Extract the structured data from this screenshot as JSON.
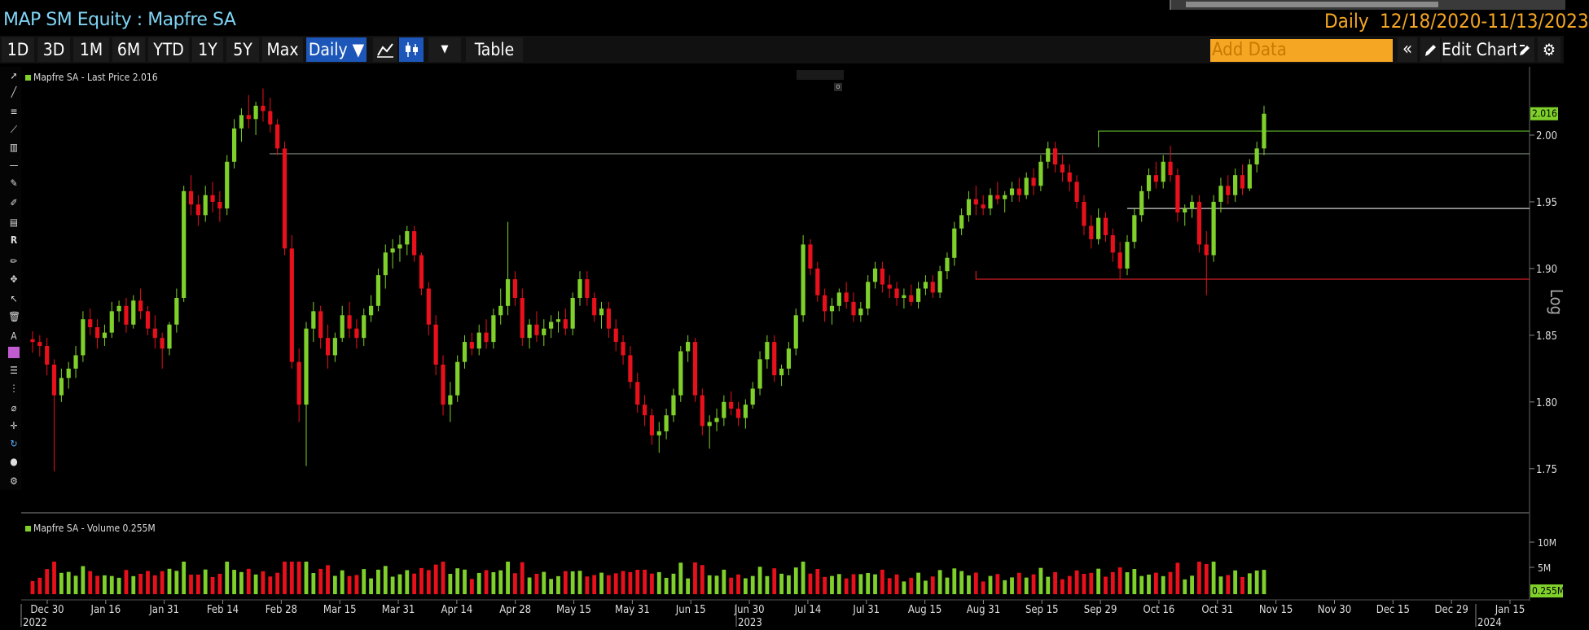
{
  "header": {
    "title": "MAP SM Equity : Mapfre SA",
    "period": "Daily",
    "date_range": "12/18/2020-11/13/2023"
  },
  "toolbar": {
    "ranges": [
      "1D",
      "3D",
      "1M",
      "6M",
      "YTD",
      "1Y",
      "5Y",
      "Max"
    ],
    "frequency": "Daily ▼",
    "table_label": "Table",
    "add_data_placeholder": "Add Data",
    "edit_chart_label": "Edit Chart"
  },
  "legend": {
    "price": "Mapfre SA - Last Price 2.016",
    "volume": "Mapfre SA - Volume 0.255M"
  },
  "price_axis": {
    "ticks": [
      "2.00",
      "1.95",
      "1.90",
      "1.85",
      "1.80",
      "1.75"
    ],
    "last_price_tag": "2.016",
    "scale_label": "Log"
  },
  "volume_axis": {
    "ticks": [
      "10M",
      "5M"
    ],
    "last_volume_tag": "0.255M"
  },
  "time_axis": {
    "labels": [
      "Dec 30",
      "Jan 16",
      "Jan 31",
      "Feb 14",
      "Feb 28",
      "Mar 15",
      "Mar 31",
      "Apr 14",
      "Apr 28",
      "May 15",
      "May 31",
      "Jun 15",
      "Jun 30",
      "Jul 14",
      "Jul 31",
      "Aug 15",
      "Aug 31",
      "Sep 15",
      "Sep 29",
      "Oct 16",
      "Oct 31",
      "Nov 15",
      "Nov 30",
      "Dec 15",
      "Dec 29",
      "Jan 15"
    ],
    "years": [
      "2022",
      "2023",
      "2024"
    ]
  },
  "colors": {
    "up": "#7fd02a",
    "down": "#e8101a",
    "accent": "#f5a623",
    "title": "#7fd4f5",
    "active_button": "#1c56b8"
  },
  "chart_data": {
    "type": "candlestick",
    "series": [
      {
        "name": "Mapfre SA - Last Price"
      }
    ],
    "ylim": [
      1.72,
      2.05
    ],
    "last_price": 2.016,
    "reference_lines": [
      1.986,
      2.003,
      1.945,
      1.892
    ],
    "candles": [
      [
        1.847,
        1.853,
        1.837,
        1.845
      ],
      [
        1.845,
        1.85,
        1.834,
        1.842
      ],
      [
        1.842,
        1.848,
        1.82,
        1.828
      ],
      [
        1.828,
        1.832,
        1.748,
        1.805
      ],
      [
        1.805,
        1.825,
        1.8,
        1.818
      ],
      [
        1.818,
        1.83,
        1.81,
        1.825
      ],
      [
        1.825,
        1.842,
        1.818,
        1.835
      ],
      [
        1.835,
        1.868,
        1.83,
        1.862
      ],
      [
        1.862,
        1.87,
        1.85,
        1.856
      ],
      [
        1.856,
        1.862,
        1.84,
        1.848
      ],
      [
        1.848,
        1.858,
        1.842,
        1.852
      ],
      [
        1.852,
        1.875,
        1.848,
        1.868
      ],
      [
        1.868,
        1.876,
        1.86,
        1.872
      ],
      [
        1.872,
        1.878,
        1.852,
        1.858
      ],
      [
        1.858,
        1.88,
        1.855,
        1.876
      ],
      [
        1.876,
        1.885,
        1.862,
        1.868
      ],
      [
        1.868,
        1.872,
        1.85,
        1.855
      ],
      [
        1.855,
        1.865,
        1.84,
        1.848
      ],
      [
        1.848,
        1.852,
        1.825,
        1.84
      ],
      [
        1.84,
        1.86,
        1.835,
        1.858
      ],
      [
        1.858,
        1.885,
        1.852,
        1.878
      ],
      [
        1.878,
        1.962,
        1.875,
        1.958
      ],
      [
        1.958,
        1.97,
        1.94,
        1.948
      ],
      [
        1.948,
        1.955,
        1.932,
        1.94
      ],
      [
        1.94,
        1.962,
        1.935,
        1.955
      ],
      [
        1.955,
        1.965,
        1.942,
        1.95
      ],
      [
        1.95,
        1.958,
        1.935,
        1.945
      ],
      [
        1.945,
        1.985,
        1.94,
        1.98
      ],
      [
        1.98,
        2.012,
        1.975,
        2.005
      ],
      [
        2.005,
        2.02,
        1.995,
        2.015
      ],
      [
        2.015,
        2.03,
        2.005,
        2.012
      ],
      [
        2.012,
        2.025,
        2.0,
        2.022
      ],
      [
        2.022,
        2.035,
        2.01,
        2.018
      ],
      [
        2.018,
        2.028,
        2.002,
        2.008
      ],
      [
        2.008,
        2.012,
        1.985,
        1.99
      ],
      [
        1.99,
        1.995,
        1.91,
        1.915
      ],
      [
        1.915,
        1.925,
        1.825,
        1.83
      ],
      [
        1.83,
        1.84,
        1.785,
        1.798
      ],
      [
        1.798,
        1.86,
        1.752,
        1.855
      ],
      [
        1.855,
        1.875,
        1.845,
        1.868
      ],
      [
        1.868,
        1.872,
        1.84,
        1.848
      ],
      [
        1.848,
        1.858,
        1.825,
        1.835
      ],
      [
        1.835,
        1.852,
        1.83,
        1.848
      ],
      [
        1.848,
        1.872,
        1.845,
        1.865
      ],
      [
        1.865,
        1.875,
        1.848,
        1.855
      ],
      [
        1.855,
        1.862,
        1.84,
        1.848
      ],
      [
        1.848,
        1.87,
        1.842,
        1.865
      ],
      [
        1.865,
        1.88,
        1.86,
        1.872
      ],
      [
        1.872,
        1.9,
        1.868,
        1.895
      ],
      [
        1.895,
        1.918,
        1.885,
        1.912
      ],
      [
        1.912,
        1.922,
        1.9,
        1.915
      ],
      [
        1.915,
        1.925,
        1.905,
        1.918
      ],
      [
        1.918,
        1.932,
        1.91,
        1.928
      ],
      [
        1.928,
        1.932,
        1.905,
        1.91
      ],
      [
        1.91,
        1.912,
        1.88,
        1.885
      ],
      [
        1.885,
        1.89,
        1.85,
        1.858
      ],
      [
        1.858,
        1.865,
        1.82,
        1.828
      ],
      [
        1.828,
        1.835,
        1.79,
        1.798
      ],
      [
        1.798,
        1.815,
        1.785,
        1.805
      ],
      [
        1.805,
        1.835,
        1.8,
        1.83
      ],
      [
        1.83,
        1.85,
        1.825,
        1.845
      ],
      [
        1.845,
        1.852,
        1.835,
        1.84
      ],
      [
        1.84,
        1.858,
        1.835,
        1.852
      ],
      [
        1.852,
        1.862,
        1.84,
        1.845
      ],
      [
        1.845,
        1.87,
        1.84,
        1.865
      ],
      [
        1.865,
        1.885,
        1.858,
        1.872
      ],
      [
        1.872,
        1.935,
        1.865,
        1.892
      ],
      [
        1.892,
        1.898,
        1.872,
        1.878
      ],
      [
        1.878,
        1.885,
        1.842,
        1.848
      ],
      [
        1.848,
        1.862,
        1.84,
        1.858
      ],
      [
        1.858,
        1.868,
        1.845,
        1.85
      ],
      [
        1.85,
        1.862,
        1.842,
        1.855
      ],
      [
        1.855,
        1.865,
        1.848,
        1.86
      ],
      [
        1.86,
        1.868,
        1.852,
        1.862
      ],
      [
        1.862,
        1.87,
        1.85,
        1.855
      ],
      [
        1.855,
        1.882,
        1.85,
        1.878
      ],
      [
        1.878,
        1.898,
        1.872,
        1.892
      ],
      [
        1.892,
        1.898,
        1.872,
        1.878
      ],
      [
        1.878,
        1.882,
        1.86,
        1.865
      ],
      [
        1.865,
        1.875,
        1.855,
        1.87
      ],
      [
        1.87,
        1.875,
        1.848,
        1.855
      ],
      [
        1.855,
        1.862,
        1.838,
        1.845
      ],
      [
        1.845,
        1.85,
        1.828,
        1.835
      ],
      [
        1.835,
        1.842,
        1.81,
        1.815
      ],
      [
        1.815,
        1.822,
        1.792,
        1.798
      ],
      [
        1.798,
        1.805,
        1.782,
        1.79
      ],
      [
        1.79,
        1.795,
        1.768,
        1.775
      ],
      [
        1.775,
        1.785,
        1.762,
        1.778
      ],
      [
        1.778,
        1.795,
        1.772,
        1.79
      ],
      [
        1.79,
        1.81,
        1.785,
        1.805
      ],
      [
        1.805,
        1.842,
        1.8,
        1.838
      ],
      [
        1.838,
        1.85,
        1.83,
        1.845
      ],
      [
        1.845,
        1.848,
        1.8,
        1.805
      ],
      [
        1.805,
        1.81,
        1.775,
        1.782
      ],
      [
        1.782,
        1.79,
        1.765,
        1.785
      ],
      [
        1.785,
        1.795,
        1.778,
        1.788
      ],
      [
        1.788,
        1.805,
        1.782,
        1.8
      ],
      [
        1.8,
        1.808,
        1.79,
        1.795
      ],
      [
        1.795,
        1.8,
        1.782,
        1.788
      ],
      [
        1.788,
        1.802,
        1.78,
        1.798
      ],
      [
        1.798,
        1.815,
        1.795,
        1.81
      ],
      [
        1.81,
        1.838,
        1.805,
        1.832
      ],
      [
        1.832,
        1.85,
        1.825,
        1.845
      ],
      [
        1.845,
        1.85,
        1.815,
        1.82
      ],
      [
        1.82,
        1.828,
        1.812,
        1.825
      ],
      [
        1.825,
        1.845,
        1.82,
        1.84
      ],
      [
        1.84,
        1.87,
        1.835,
        1.865
      ],
      [
        1.865,
        1.925,
        1.86,
        1.918
      ],
      [
        1.918,
        1.922,
        1.895,
        1.9
      ],
      [
        1.9,
        1.905,
        1.875,
        1.88
      ],
      [
        1.88,
        1.885,
        1.86,
        1.868
      ],
      [
        1.868,
        1.878,
        1.858,
        1.872
      ],
      [
        1.872,
        1.885,
        1.868,
        1.882
      ],
      [
        1.882,
        1.89,
        1.87,
        1.875
      ],
      [
        1.875,
        1.882,
        1.86,
        1.865
      ],
      [
        1.865,
        1.875,
        1.86,
        1.87
      ],
      [
        1.87,
        1.895,
        1.865,
        1.89
      ],
      [
        1.89,
        1.905,
        1.885,
        1.9
      ],
      [
        1.9,
        1.905,
        1.882,
        1.888
      ],
      [
        1.888,
        1.895,
        1.878,
        1.885
      ],
      [
        1.885,
        1.89,
        1.872,
        1.878
      ],
      [
        1.878,
        1.885,
        1.87,
        1.88
      ],
      [
        1.88,
        1.888,
        1.872,
        1.875
      ],
      [
        1.875,
        1.89,
        1.87,
        1.885
      ],
      [
        1.885,
        1.895,
        1.88,
        1.89
      ],
      [
        1.89,
        1.895,
        1.878,
        1.882
      ],
      [
        1.882,
        1.902,
        1.878,
        1.898
      ],
      [
        1.898,
        1.912,
        1.892,
        1.908
      ],
      [
        1.908,
        1.935,
        1.902,
        1.93
      ],
      [
        1.93,
        1.945,
        1.925,
        1.94
      ],
      [
        1.94,
        1.958,
        1.935,
        1.952
      ],
      [
        1.952,
        1.962,
        1.94,
        1.948
      ],
      [
        1.948,
        1.955,
        1.94,
        1.945
      ],
      [
        1.945,
        1.96,
        1.94,
        1.955
      ],
      [
        1.955,
        1.965,
        1.948,
        1.952
      ],
      [
        1.952,
        1.958,
        1.942,
        1.955
      ],
      [
        1.955,
        1.965,
        1.95,
        1.96
      ],
      [
        1.96,
        1.968,
        1.95,
        1.955
      ],
      [
        1.955,
        1.972,
        1.952,
        1.968
      ],
      [
        1.968,
        1.975,
        1.955,
        1.962
      ],
      [
        1.962,
        1.985,
        1.958,
        1.98
      ],
      [
        1.98,
        1.995,
        1.975,
        1.99
      ],
      [
        1.99,
        1.995,
        1.972,
        1.978
      ],
      [
        1.978,
        1.985,
        1.965,
        1.972
      ],
      [
        1.972,
        1.978,
        1.958,
        1.965
      ],
      [
        1.965,
        1.97,
        1.945,
        1.95
      ],
      [
        1.95,
        1.955,
        1.925,
        1.932
      ],
      [
        1.932,
        1.94,
        1.915,
        1.922
      ],
      [
        1.922,
        1.945,
        1.918,
        1.938
      ],
      [
        1.938,
        1.942,
        1.92,
        1.925
      ],
      [
        1.925,
        1.93,
        1.905,
        1.912
      ],
      [
        1.912,
        1.92,
        1.892,
        1.9
      ],
      [
        1.9,
        1.925,
        1.895,
        1.92
      ],
      [
        1.92,
        1.945,
        1.915,
        1.94
      ],
      [
        1.94,
        1.962,
        1.935,
        1.958
      ],
      [
        1.958,
        1.975,
        1.952,
        1.97
      ],
      [
        1.97,
        1.98,
        1.96,
        1.965
      ],
      [
        1.965,
        1.985,
        1.96,
        1.98
      ],
      [
        1.98,
        1.992,
        1.965,
        1.97
      ],
      [
        1.97,
        1.975,
        1.935,
        1.942
      ],
      [
        1.942,
        1.948,
        1.932,
        1.945
      ],
      [
        1.945,
        1.955,
        1.938,
        1.95
      ],
      [
        1.95,
        1.955,
        1.912,
        1.918
      ],
      [
        1.918,
        1.928,
        1.88,
        1.91
      ],
      [
        1.91,
        1.955,
        1.905,
        1.95
      ],
      [
        1.95,
        1.968,
        1.942,
        1.962
      ],
      [
        1.962,
        1.97,
        1.948,
        1.955
      ],
      [
        1.955,
        1.975,
        1.95,
        1.97
      ],
      [
        1.97,
        1.978,
        1.955,
        1.96
      ],
      [
        1.96,
        1.982,
        1.958,
        1.978
      ],
      [
        1.978,
        1.995,
        1.972,
        1.99
      ],
      [
        1.99,
        2.022,
        1.985,
        2.016
      ]
    ]
  }
}
